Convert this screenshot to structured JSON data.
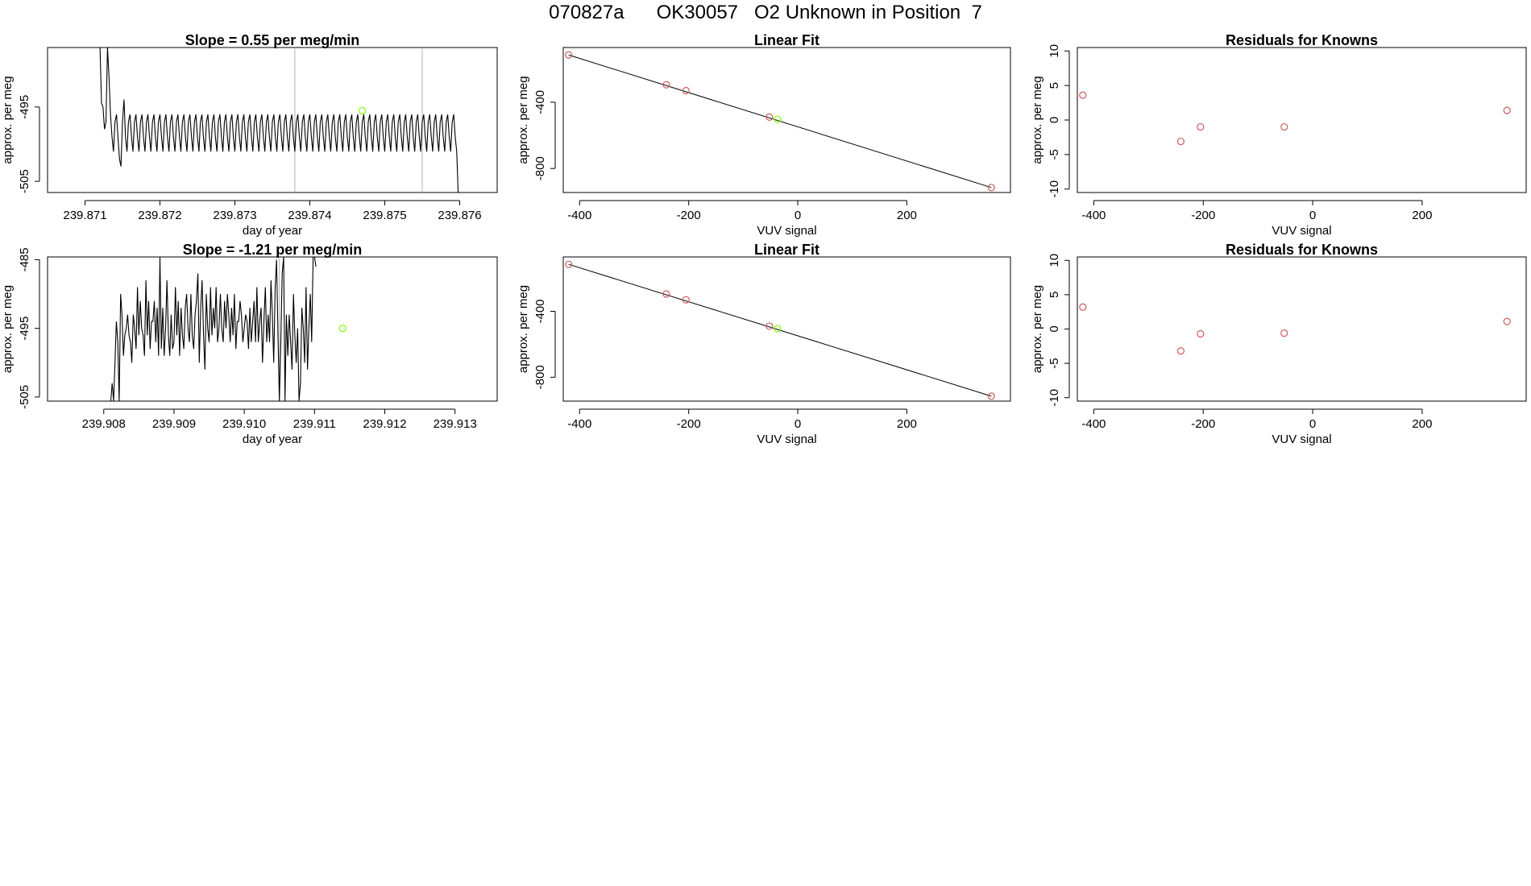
{
  "page_title": "070827a      OK30057   O2 Unknown in Position  7",
  "colors": {
    "line": "#000000",
    "knowns": "#cd5c5c",
    "unknown": "#7cfc00",
    "vlines": "#b0b0b0"
  },
  "chart_data": [
    {
      "type": "line",
      "title": "Slope =  0.55  per meg/min",
      "xlabel": "day of year",
      "ylabel": "approx. per meg",
      "xlim": [
        239.8705,
        239.8765
      ],
      "ylim": [
        -506.5,
        -487
      ],
      "xticks": [
        239.871,
        239.872,
        239.873,
        239.874,
        239.875,
        239.876
      ],
      "xtick_labels": [
        "239.871",
        "239.872",
        "239.873",
        "239.874",
        "239.875",
        "239.876"
      ],
      "yticks": [
        -505,
        -495
      ],
      "ytick_labels": [
        "-505",
        "-495"
      ],
      "vlines": [
        239.8738,
        239.8755
      ],
      "series": [
        {
          "x_start": 239.8707,
          "x_step": 2e-05,
          "values": [
            -487,
            -487,
            -487,
            -487,
            -487,
            -487,
            -487,
            -487,
            -487,
            -487,
            -487,
            -487,
            -487,
            -487,
            -487,
            -487,
            -487,
            -487,
            -487,
            -487,
            -487,
            -487,
            -487,
            -487,
            -487,
            -487,
            -494.5,
            -495,
            -498,
            -497,
            -487,
            -491,
            -496,
            -499,
            -501,
            -497,
            -496,
            -499,
            -502,
            -503,
            -497,
            -494,
            -499,
            -501,
            -497,
            -496,
            -499,
            -501,
            -497,
            -496,
            -499,
            -501,
            -497,
            -496,
            -499,
            -501,
            -497,
            -496,
            -499,
            -501,
            -497,
            -496,
            -499,
            -501,
            -497,
            -496,
            -499,
            -501,
            -497,
            -496,
            -499,
            -501,
            -497,
            -496,
            -499,
            -501,
            -497,
            -496,
            -499,
            -501,
            -497,
            -496,
            -499,
            -501,
            -497,
            -496,
            -499,
            -501,
            -497,
            -496,
            -499,
            -501,
            -497,
            -496,
            -499,
            -501,
            -497,
            -496,
            -499,
            -501,
            -497,
            -496,
            -499,
            -501,
            -497,
            -496,
            -499,
            -501,
            -497,
            -496,
            -499,
            -501,
            -497,
            -496,
            -499,
            -501,
            -497,
            -496,
            -499,
            -501,
            -497,
            -496,
            -499,
            -501,
            -497,
            -496,
            -499,
            -501,
            -497,
            -496,
            -499,
            -501,
            -497,
            -496,
            -499,
            -501,
            -497,
            -496,
            -499,
            -501,
            -497,
            -496,
            -499,
            -501,
            -497,
            -496,
            -499,
            -501,
            -497,
            -496,
            -499,
            -501,
            -497,
            -496,
            -499,
            -501,
            -497,
            -496,
            -499,
            -501,
            -497,
            -496,
            -499,
            -501,
            -497,
            -496,
            -499,
            -501,
            -497,
            -496,
            -499,
            -501,
            -497,
            -496,
            -499,
            -501,
            -497,
            -496,
            -499,
            -501,
            -497,
            -496,
            -499,
            -501,
            -497,
            -496,
            -499,
            -501,
            -497,
            -496,
            -499,
            -501,
            -497,
            -496,
            -499,
            -501,
            -497,
            -496,
            -499,
            -501,
            -497,
            -496,
            -499,
            -501,
            -497,
            -496,
            -499,
            -501,
            -497,
            -496,
            -499,
            -501,
            -497,
            -496,
            -499,
            -501,
            -497,
            -496,
            -499,
            -501,
            -497,
            -496,
            -499,
            -501,
            -497,
            -496,
            -499,
            -501,
            -497,
            -496,
            -499,
            -501,
            -497,
            -496,
            -499,
            -501,
            -497,
            -496,
            -499,
            -501,
            -497,
            -496,
            -499,
            -501,
            -497,
            -496,
            -499,
            -501,
            -497,
            -496,
            -499,
            -501,
            -497,
            -496,
            -499,
            -501,
            -497,
            -496,
            -499,
            -501,
            -497,
            -496,
            -499,
            -501,
            -506.5
          ]
        }
      ],
      "marker": {
        "x": 239.8747,
        "y": -495.5
      }
    },
    {
      "type": "scatter",
      "title": "Linear Fit",
      "xlabel": "VUV signal",
      "ylabel": "approx. per meg",
      "xlim": [
        -430,
        390
      ],
      "ylim": [
        -945,
        -70
      ],
      "xticks": [
        -400,
        -200,
        0,
        200
      ],
      "xtick_labels": [
        "-400",
        "-200",
        "0",
        "200"
      ],
      "yticks": [
        -800,
        -400
      ],
      "ytick_labels": [
        "-800",
        "-400"
      ],
      "fit_line": {
        "x": [
          -420,
          355
        ],
        "y": [
          -115,
          -915
        ]
      },
      "knowns": {
        "x": [
          -420,
          -241,
          -205,
          -52,
          355
        ],
        "y": [
          -115,
          -295,
          -330,
          -490,
          -915
        ]
      },
      "unknown": {
        "x": [
          -37
        ],
        "y": [
          -503
        ]
      }
    },
    {
      "type": "scatter",
      "title": "Residuals for Knowns",
      "xlabel": "VUV signal",
      "ylabel": "approx. per meg",
      "xlim": [
        -430,
        390
      ],
      "ylim": [
        -10.5,
        10.5
      ],
      "xticks": [
        -400,
        -200,
        0,
        200
      ],
      "xtick_labels": [
        "-400",
        "-200",
        "0",
        "200"
      ],
      "yticks": [
        -10,
        -5,
        0,
        5,
        10
      ],
      "ytick_labels": [
        "-10",
        "-5",
        "0",
        "5",
        "10"
      ],
      "knowns": {
        "x": [
          -420,
          -241,
          -205,
          -52,
          355
        ],
        "y": [
          3.6,
          -3.1,
          -1.0,
          -1.0,
          1.4
        ]
      }
    },
    {
      "type": "line",
      "title": "Slope =  -1.21  per meg/min",
      "xlabel": "day of year",
      "ylabel": "approx. per meg",
      "xlim": [
        239.9072,
        239.9136
      ],
      "ylim": [
        -505.6,
        -484.6
      ],
      "xticks": [
        239.908,
        239.909,
        239.91,
        239.911,
        239.912,
        239.913
      ],
      "xtick_labels": [
        "239.908",
        "239.909",
        "239.910",
        "239.911",
        "239.912",
        "239.913"
      ],
      "yticks": [
        -505,
        -495,
        -485
      ],
      "ytick_labels": [
        "-505",
        "-495",
        "-485"
      ],
      "vlines": [
        239.9105
      ],
      "series": [
        {
          "x_start": 239.9081,
          "x_step": 2e-05,
          "values": [
            -505.6,
            -503,
            -505.6,
            -500,
            -494,
            -497,
            -505.6,
            -490,
            -493,
            -499,
            -496,
            -495,
            -493,
            -496,
            -497,
            -500,
            -493,
            -495,
            -498,
            -489,
            -496,
            -491,
            -495,
            -496,
            -499,
            -488,
            -496,
            -491,
            -498,
            -494,
            -494,
            -491,
            -497,
            -492,
            -499,
            -484.6,
            -498,
            -492,
            -499,
            -495,
            -488,
            -496,
            -499,
            -493,
            -498,
            -497,
            -489,
            -496,
            -491,
            -499,
            -492,
            -496,
            -498,
            -492,
            -490,
            -495,
            -497,
            -490,
            -496,
            -498,
            -493,
            -491,
            -487,
            -500,
            -492,
            -488,
            -496,
            -501,
            -490,
            -495,
            -497,
            -489,
            -496,
            -492,
            -495,
            -489,
            -497,
            -495,
            -490,
            -495,
            -497,
            -491,
            -495,
            -490,
            -493,
            -497,
            -492,
            -496,
            -490,
            -498,
            -494,
            -494,
            -491,
            -493,
            -497,
            -495,
            -493,
            -494,
            -498,
            -492,
            -497,
            -494,
            -491,
            -497,
            -489,
            -497,
            -494,
            -492,
            -500,
            -494,
            -489,
            -497,
            -493,
            -497,
            -488,
            -493,
            -500,
            -489,
            -485,
            -496,
            -505.6,
            -497,
            -487,
            -484.6,
            -505.6,
            -493,
            -499,
            -493,
            -497,
            -501,
            -490,
            -496,
            -500,
            -495,
            -505.6,
            -503,
            -492,
            -495,
            -500,
            -489,
            -501,
            -495,
            -490,
            -497,
            -484.6,
            -484.6,
            -486
          ]
        }
      ],
      "marker": {
        "x": 239.9114,
        "y": -495
      }
    },
    {
      "type": "scatter",
      "title": "Linear Fit",
      "xlabel": "VUV signal",
      "ylabel": "approx. per meg",
      "xlim": [
        -430,
        390
      ],
      "ylim": [
        -945,
        -70
      ],
      "xticks": [
        -400,
        -200,
        0,
        200
      ],
      "xtick_labels": [
        "-400",
        "-200",
        "0",
        "200"
      ],
      "yticks": [
        -800,
        -400
      ],
      "ytick_labels": [
        "-800",
        "-400"
      ],
      "fit_line": {
        "x": [
          -420,
          355
        ],
        "y": [
          -115,
          -915
        ]
      },
      "knowns": {
        "x": [
          -420,
          -241,
          -205,
          -52,
          355
        ],
        "y": [
          -115,
          -295,
          -330,
          -490,
          -915
        ]
      },
      "unknown": {
        "x": [
          -37
        ],
        "y": [
          -505
        ]
      }
    },
    {
      "type": "scatter",
      "title": "Residuals for Knowns",
      "xlabel": "VUV signal",
      "ylabel": "approx. per meg",
      "xlim": [
        -430,
        390
      ],
      "ylim": [
        -10.5,
        10.5
      ],
      "xticks": [
        -400,
        -200,
        0,
        200
      ],
      "xtick_labels": [
        "-400",
        "-200",
        "0",
        "200"
      ],
      "yticks": [
        -10,
        -5,
        0,
        5,
        10
      ],
      "ytick_labels": [
        "-10",
        "-5",
        "0",
        "5",
        "10"
      ],
      "knowns": {
        "x": [
          -420,
          -241,
          -205,
          -52,
          355
        ],
        "y": [
          3.2,
          -3.2,
          -0.7,
          -0.6,
          1.1
        ]
      }
    }
  ]
}
